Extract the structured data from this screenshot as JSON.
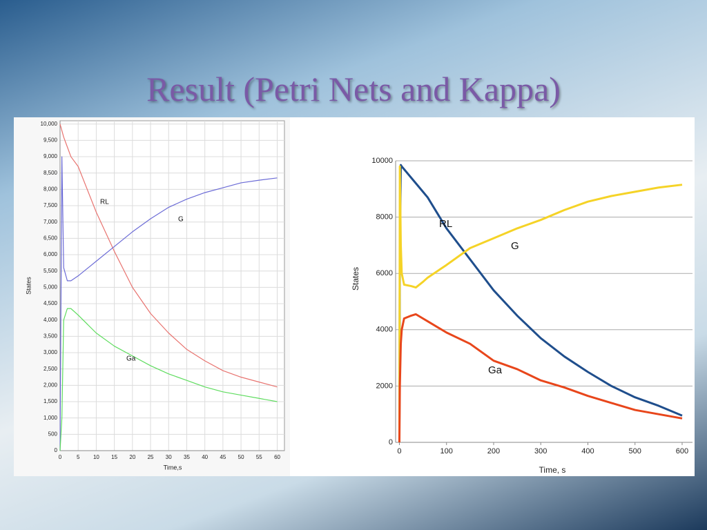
{
  "title": "Result (Petri Nets and Kappa)",
  "chart_data": [
    {
      "type": "line",
      "xlabel": "Time,s",
      "ylabel": "States",
      "grid": "both",
      "x": [
        0,
        0.5,
        1,
        2,
        3,
        5,
        10,
        15,
        20,
        25,
        30,
        35,
        40,
        45,
        50,
        55,
        60
      ],
      "xlim": [
        0,
        62
      ],
      "ylim": [
        0,
        10100
      ],
      "xticks": [
        0,
        5,
        10,
        15,
        20,
        25,
        30,
        35,
        40,
        45,
        50,
        55,
        60
      ],
      "yticks": [
        0,
        500,
        {
          "value": 1000,
          "label": "1,000"
        },
        {
          "value": 1500,
          "label": "1,500"
        },
        {
          "value": 2000,
          "label": "2,000"
        },
        {
          "value": 2500,
          "label": "2,500"
        },
        {
          "value": 3000,
          "label": "3,000"
        },
        {
          "value": 3500,
          "label": "3,500"
        },
        {
          "value": 4000,
          "label": "4,000"
        },
        {
          "value": 4500,
          "label": "4,500"
        },
        {
          "value": 5000,
          "label": "5,000"
        },
        {
          "value": 5500,
          "label": "5,500"
        },
        {
          "value": 6000,
          "label": "6,000"
        },
        {
          "value": 6500,
          "label": "6,500"
        },
        {
          "value": 7000,
          "label": "7,000"
        },
        {
          "value": 7500,
          "label": "7,500"
        },
        {
          "value": 8000,
          "label": "8,000"
        },
        {
          "value": 8500,
          "label": "8,500"
        },
        {
          "value": 9000,
          "label": "9,000"
        },
        {
          "value": 9500,
          "label": "9,500"
        },
        {
          "value": 10000,
          "label": "10,000"
        }
      ],
      "series": [
        {
          "name": "RL",
          "color": "#e8736f",
          "values": [
            10000,
            9800,
            9600,
            9300,
            9000,
            8700,
            7300,
            6100,
            5000,
            4200,
            3600,
            3100,
            2750,
            2450,
            2250,
            2100,
            1950
          ]
        },
        {
          "name": "G",
          "color": "#6b6bd6",
          "values": [
            0,
            9000,
            5600,
            5200,
            5200,
            5350,
            5800,
            6250,
            6700,
            7100,
            7450,
            7700,
            7900,
            8050,
            8200,
            8280,
            8350
          ]
        },
        {
          "name": "Ga",
          "color": "#5edc5e",
          "values": [
            0,
            1000,
            4000,
            4350,
            4350,
            4150,
            3600,
            3200,
            2900,
            2600,
            2350,
            2150,
            1950,
            1800,
            1700,
            1600,
            1500
          ]
        }
      ]
    },
    {
      "type": "line",
      "xlabel": "Time, s",
      "ylabel": "States",
      "grid": "y",
      "x": [
        0,
        1,
        3,
        5,
        10,
        25,
        35,
        50,
        60,
        100,
        150,
        200,
        250,
        300,
        350,
        400,
        450,
        500,
        550,
        600
      ],
      "xlim": [
        -8,
        622
      ],
      "ylim": [
        0,
        10000
      ],
      "xticks": [
        0,
        100,
        200,
        300,
        400,
        500,
        600
      ],
      "yticks": [
        0,
        2000,
        4000,
        6000,
        8000,
        10000
      ],
      "series": [
        {
          "name": "RL",
          "color": "#1f4e8c",
          "values": [
            0,
            7000,
            9850,
            9800,
            9700,
            9400,
            9200,
            8900,
            8700,
            7600,
            6500,
            5400,
            4500,
            3700,
            3050,
            2500,
            2000,
            1600,
            1300,
            950
          ]
        },
        {
          "name": "G",
          "color": "#f5d327",
          "values": [
            0,
            9800,
            7000,
            6000,
            5600,
            5550,
            5500,
            5700,
            5850,
            6300,
            6900,
            7250,
            7600,
            7900,
            8250,
            8550,
            8750,
            8900,
            9050,
            9150
          ]
        },
        {
          "name": "Ga",
          "color": "#e8461b",
          "values": [
            0,
            2000,
            3500,
            4000,
            4400,
            4500,
            4550,
            4400,
            4300,
            3900,
            3500,
            2900,
            2600,
            2200,
            1950,
            1650,
            1400,
            1150,
            1000,
            850
          ]
        }
      ]
    }
  ]
}
